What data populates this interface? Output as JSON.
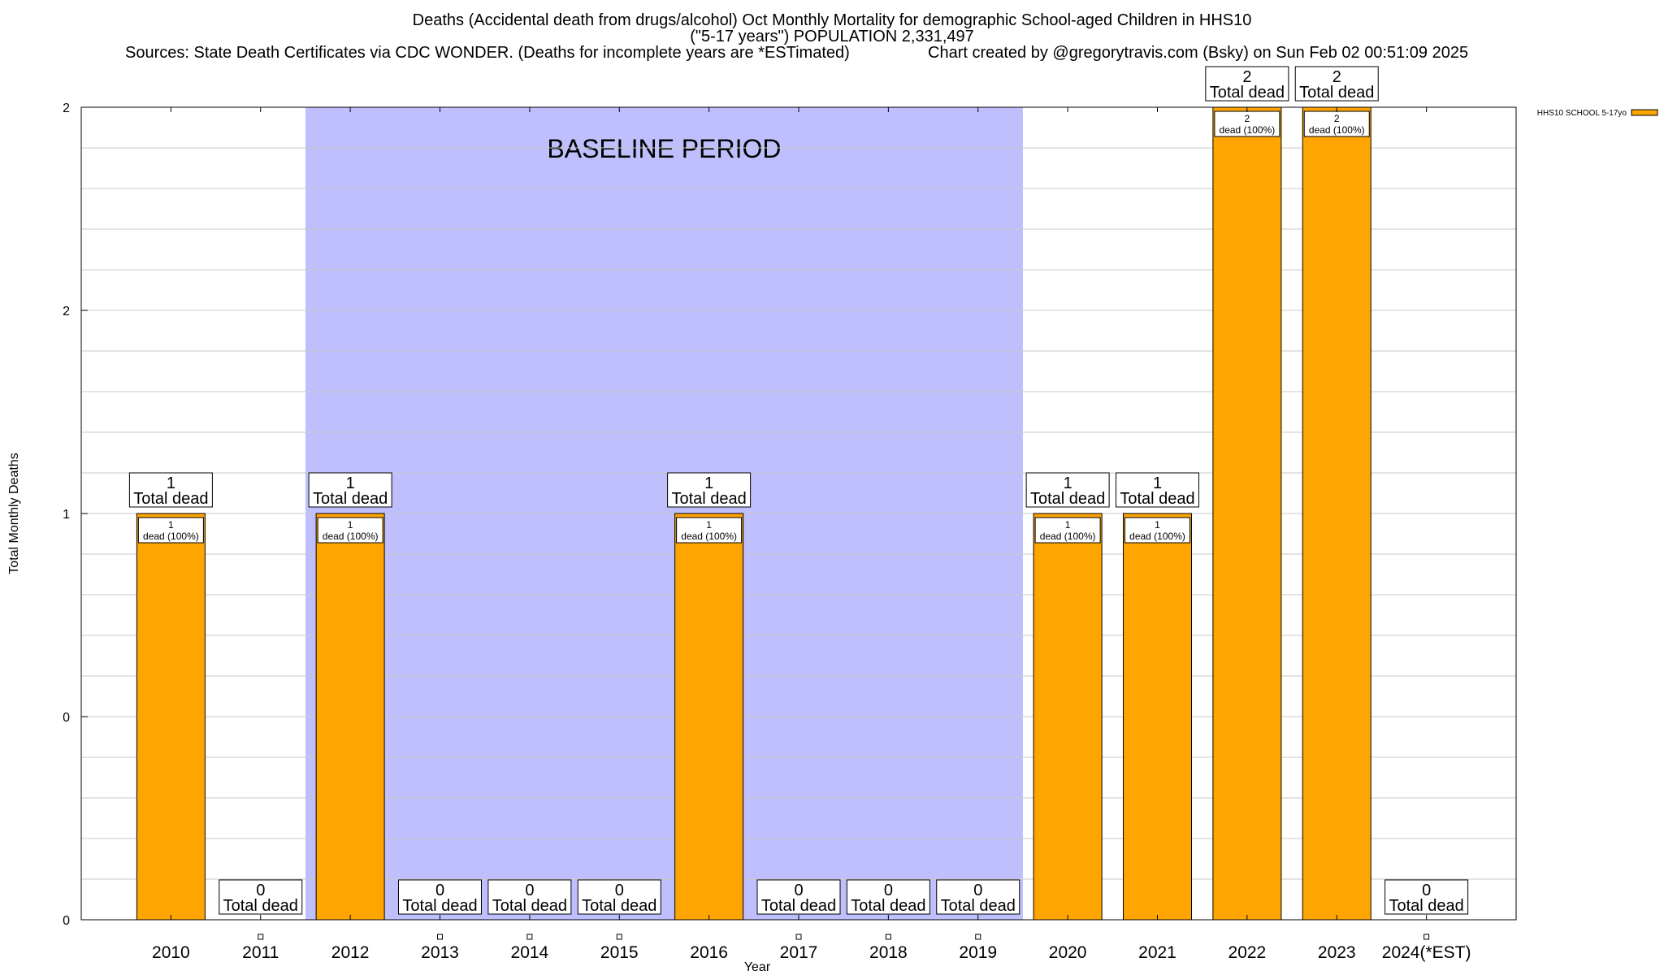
{
  "header": {
    "title_line1": "Deaths (Accidental death from drugs/alcohol) Oct Monthly Mortality for demographic School-aged Children in HHS10",
    "title_line2": "(\"5-17 years\") POPULATION 2,331,497",
    "sources": "Sources: State Death Certificates via CDC WONDER. (Deaths for incomplete years are *ESTimated)",
    "credit": "Chart created by @gregorytravis.com (Bsky) on Sun Feb 02 00:51:09 2025"
  },
  "chart_data": {
    "type": "bar",
    "xlabel": "Year",
    "ylabel": "Total Monthly Deaths",
    "ylim": [
      0,
      2
    ],
    "ytick_labels": [
      "0",
      "0",
      "1",
      "2",
      "2"
    ],
    "ytick_values": [
      0,
      0.5,
      1,
      1.5,
      2
    ],
    "grid": true,
    "categories": [
      "2010",
      "2011",
      "2012",
      "2013",
      "2014",
      "2015",
      "2016",
      "2017",
      "2018",
      "2019",
      "2020",
      "2021",
      "2022",
      "2023",
      "2024(*EST)"
    ],
    "series": [
      {
        "name": "HHS10 SCHOOL 5-17yo",
        "color": "#ffa500",
        "values": [
          1,
          0,
          1,
          0,
          0,
          0,
          1,
          0,
          0,
          0,
          1,
          1,
          2,
          2,
          0
        ]
      }
    ],
    "total_label_suffix": "Total dead",
    "inner_label_suffix": "dead (100%)",
    "baseline": {
      "label": "BASELINE PERIOD",
      "start": "2012",
      "end": "2019",
      "color": "#bfbffd"
    },
    "legend_position": "top-right"
  }
}
